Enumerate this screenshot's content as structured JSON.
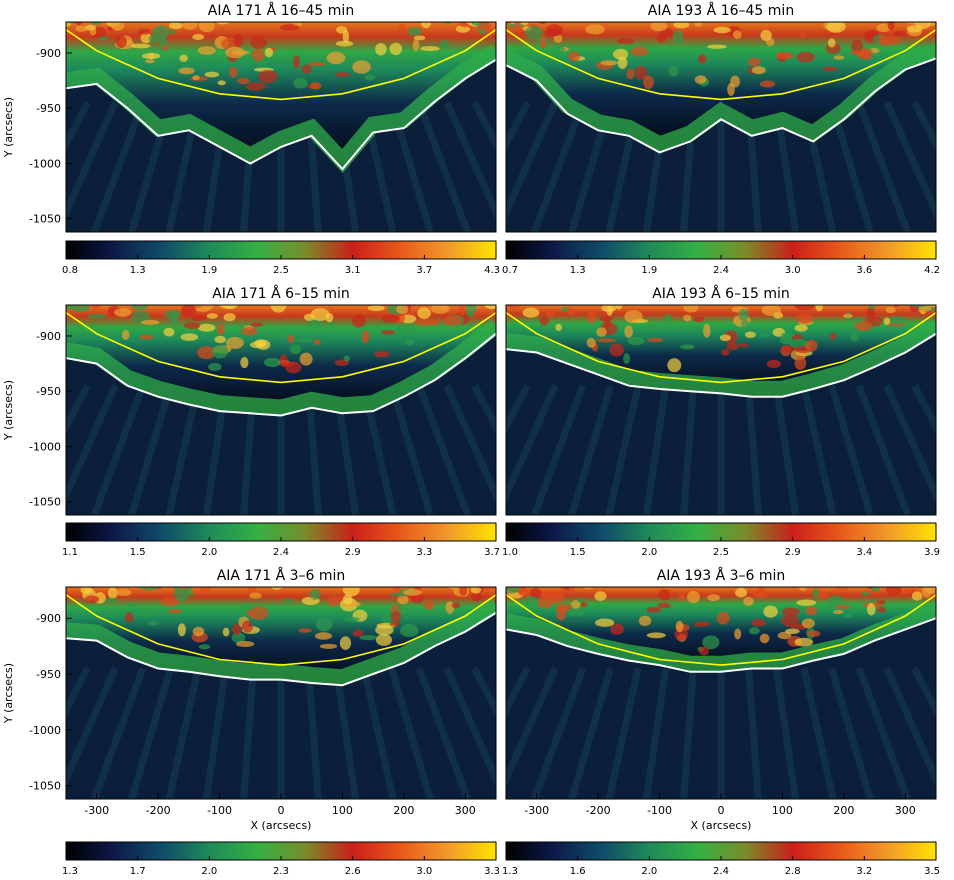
{
  "figure": {
    "colormap": [
      "#000000",
      "#0d1a4a",
      "#0f4c6a",
      "#1f8a5a",
      "#33b044",
      "#7a8d2a",
      "#cc1f1a",
      "#e85a1a",
      "#f29a2a",
      "#ffe400"
    ],
    "limb_color": "#ffff00",
    "contour_color": "#ffffff"
  },
  "chart_data": [
    {
      "type": "heatmap",
      "title": "AIA 171 Å 16–45 min",
      "ylabel": "Y (arcsecs)",
      "xlabel": "",
      "xlim": [
        -350,
        350
      ],
      "ylim": [
        -1062,
        -872
      ],
      "yticks": [
        -900,
        -950,
        -1000,
        -1050
      ],
      "xticks": [],
      "colorbar": {
        "min": 0.8,
        "max": 4.3,
        "tick_labels": [
          "0.8",
          "1.3",
          "1.9",
          "2.5",
          "3.1",
          "3.7",
          "4.3"
        ]
      },
      "limb": {
        "x": [
          -350,
          -300,
          -200,
          -100,
          0,
          100,
          200,
          300,
          350
        ],
        "y": [
          -879,
          -898,
          -923,
          -937,
          -942,
          -937,
          -923,
          -898,
          -879
        ]
      },
      "contour": {
        "x": [
          -350,
          -300,
          -250,
          -200,
          -150,
          -100,
          -50,
          0,
          50,
          100,
          150,
          200,
          250,
          300,
          350
        ],
        "y": [
          -932,
          -928,
          -950,
          -975,
          -970,
          -985,
          -1000,
          -985,
          -975,
          -1005,
          -972,
          -968,
          -944,
          -923,
          -906
        ]
      }
    },
    {
      "type": "heatmap",
      "title": "AIA 193 Å 16–45 min",
      "ylabel": "",
      "xlabel": "",
      "xlim": [
        -350,
        350
      ],
      "ylim": [
        -1062,
        -872
      ],
      "yticks": [],
      "xticks": [],
      "colorbar": {
        "min": 0.7,
        "max": 4.2,
        "tick_labels": [
          "0.7",
          "1.3",
          "1.9",
          "2.4",
          "3.0",
          "3.6",
          "4.2"
        ]
      },
      "limb": {
        "x": [
          -350,
          -300,
          -200,
          -100,
          0,
          100,
          200,
          300,
          350
        ],
        "y": [
          -879,
          -898,
          -923,
          -937,
          -942,
          -937,
          -923,
          -898,
          -879
        ]
      },
      "contour": {
        "x": [
          -350,
          -300,
          -250,
          -200,
          -150,
          -100,
          -50,
          0,
          50,
          100,
          150,
          200,
          250,
          300,
          350
        ],
        "y": [
          -911,
          -925,
          -955,
          -970,
          -975,
          -990,
          -980,
          -960,
          -975,
          -968,
          -980,
          -960,
          -935,
          -915,
          -905
        ]
      }
    },
    {
      "type": "heatmap",
      "title": "AIA 171 Å 6–15 min",
      "ylabel": "Y (arcsecs)",
      "xlabel": "",
      "xlim": [
        -350,
        350
      ],
      "ylim": [
        -1062,
        -872
      ],
      "yticks": [
        -900,
        -950,
        -1000,
        -1050
      ],
      "xticks": [],
      "colorbar": {
        "min": 1.1,
        "max": 3.7,
        "tick_labels": [
          "1.1",
          "1.5",
          "2.0",
          "2.4",
          "2.9",
          "3.3",
          "3.7"
        ]
      },
      "limb": {
        "x": [
          -350,
          -300,
          -200,
          -100,
          0,
          100,
          200,
          300,
          350
        ],
        "y": [
          -879,
          -898,
          -923,
          -937,
          -942,
          -937,
          -923,
          -898,
          -879
        ]
      },
      "contour": {
        "x": [
          -350,
          -300,
          -250,
          -200,
          -150,
          -100,
          -50,
          0,
          50,
          100,
          150,
          200,
          250,
          300,
          350
        ],
        "y": [
          -920,
          -925,
          -945,
          -955,
          -962,
          -968,
          -970,
          -972,
          -965,
          -970,
          -968,
          -955,
          -940,
          -920,
          -898
        ]
      }
    },
    {
      "type": "heatmap",
      "title": "AIA 193 Å 6–15 min",
      "ylabel": "",
      "xlabel": "",
      "xlim": [
        -350,
        350
      ],
      "ylim": [
        -1062,
        -872
      ],
      "yticks": [],
      "xticks": [],
      "colorbar": {
        "min": 1.0,
        "max": 3.9,
        "tick_labels": [
          "1.0",
          "1.5",
          "2.0",
          "2.5",
          "2.9",
          "3.4",
          "3.9"
        ]
      },
      "limb": {
        "x": [
          -350,
          -300,
          -200,
          -100,
          0,
          100,
          200,
          300,
          350
        ],
        "y": [
          -879,
          -898,
          -923,
          -937,
          -942,
          -937,
          -923,
          -898,
          -879
        ]
      },
      "contour": {
        "x": [
          -350,
          -300,
          -250,
          -200,
          -150,
          -100,
          -50,
          0,
          50,
          100,
          150,
          200,
          250,
          300,
          350
        ],
        "y": [
          -912,
          -915,
          -925,
          -935,
          -945,
          -948,
          -950,
          -952,
          -955,
          -955,
          -948,
          -940,
          -928,
          -915,
          -898
        ]
      }
    },
    {
      "type": "heatmap",
      "title": "AIA 171 Å 3–6 min",
      "ylabel": "Y (arcsecs)",
      "xlabel": "X (arcsecs)",
      "xlim": [
        -350,
        350
      ],
      "ylim": [
        -1062,
        -872
      ],
      "yticks": [
        -900,
        -950,
        -1000,
        -1050
      ],
      "xticks": [
        -300,
        -200,
        -100,
        0,
        100,
        200,
        300
      ],
      "colorbar": {
        "min": 1.3,
        "max": 3.3,
        "tick_labels": [
          "1.3",
          "1.7",
          "2.0",
          "2.3",
          "2.6",
          "3.0",
          "3.3"
        ]
      },
      "limb": {
        "x": [
          -350,
          -300,
          -200,
          -100,
          0,
          100,
          200,
          300,
          350
        ],
        "y": [
          -879,
          -898,
          -923,
          -937,
          -942,
          -937,
          -923,
          -898,
          -879
        ]
      },
      "contour": {
        "x": [
          -350,
          -300,
          -250,
          -200,
          -150,
          -100,
          -50,
          0,
          50,
          100,
          150,
          200,
          250,
          300,
          350
        ],
        "y": [
          -918,
          -920,
          -935,
          -945,
          -948,
          -952,
          -955,
          -955,
          -958,
          -960,
          -950,
          -940,
          -925,
          -912,
          -895
        ]
      }
    },
    {
      "type": "heatmap",
      "title": "AIA 193 Å 3–6 min",
      "ylabel": "",
      "xlabel": "X (arcsecs)",
      "xlim": [
        -350,
        350
      ],
      "ylim": [
        -1062,
        -872
      ],
      "yticks": [],
      "xticks": [
        -300,
        -200,
        -100,
        0,
        100,
        200,
        300
      ],
      "colorbar": {
        "min": 1.3,
        "max": 3.5,
        "tick_labels": [
          "1.3",
          "1.6",
          "2.0",
          "2.4",
          "2.8",
          "3.2",
          "3.5"
        ]
      },
      "limb": {
        "x": [
          -350,
          -300,
          -200,
          -100,
          0,
          100,
          200,
          300,
          350
        ],
        "y": [
          -879,
          -898,
          -923,
          -937,
          -942,
          -937,
          -923,
          -898,
          -879
        ]
      },
      "contour": {
        "x": [
          -350,
          -300,
          -250,
          -200,
          -150,
          -100,
          -50,
          0,
          50,
          100,
          150,
          200,
          250,
          300,
          350
        ],
        "y": [
          -910,
          -915,
          -925,
          -932,
          -938,
          -942,
          -948,
          -948,
          -945,
          -945,
          -938,
          -932,
          -920,
          -910,
          -900
        ]
      }
    }
  ]
}
